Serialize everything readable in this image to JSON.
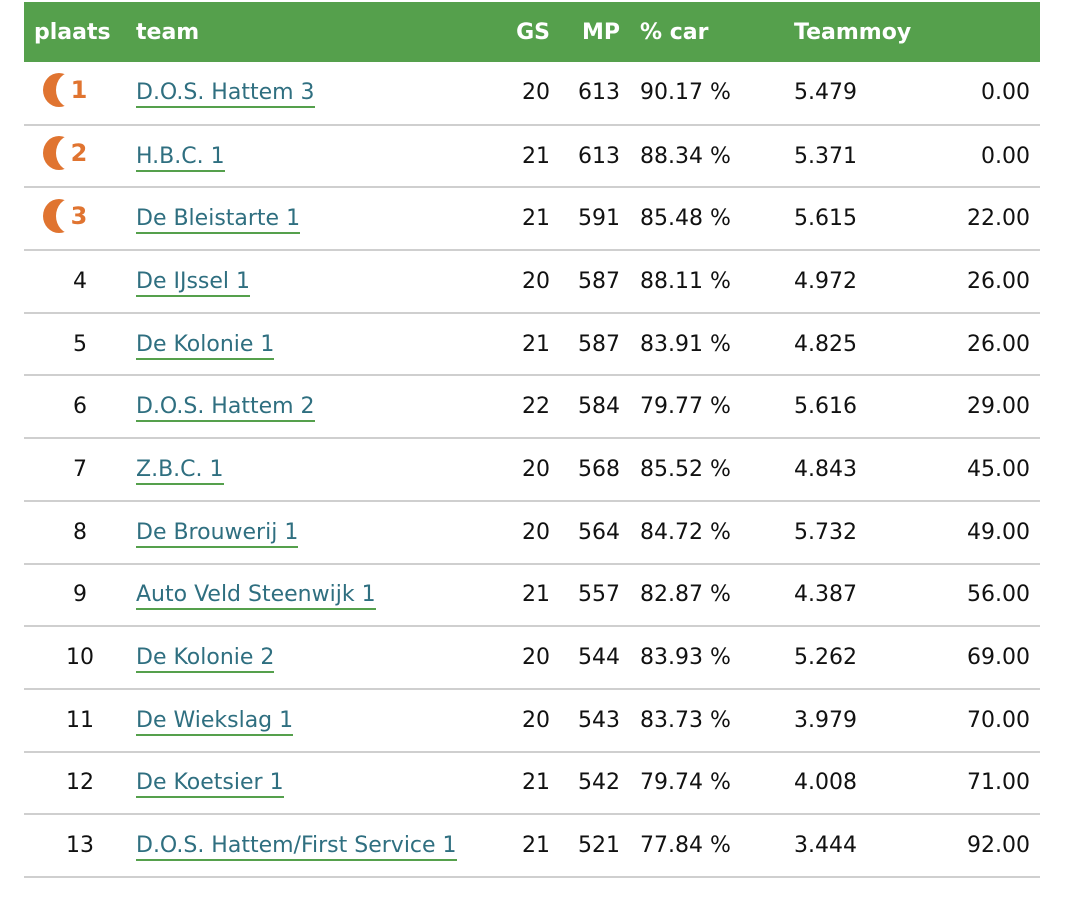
{
  "columns": [
    "plaats",
    "team",
    "GS",
    "MP",
    "% car",
    "Teammoy",
    ""
  ],
  "accent": "#55a04c",
  "medal_color": "#e07430",
  "rows": [
    {
      "plaats": "1",
      "team": "D.O.S. Hattem 3",
      "gs": "20",
      "mp": "613",
      "car": "90.17 %",
      "tm": "5.479",
      "last": "0.00",
      "medal": true
    },
    {
      "plaats": "2",
      "team": "H.B.C. 1",
      "gs": "21",
      "mp": "613",
      "car": "88.34 %",
      "tm": "5.371",
      "last": "0.00",
      "medal": true
    },
    {
      "plaats": "3",
      "team": "De Bleistarte 1",
      "gs": "21",
      "mp": "591",
      "car": "85.48 %",
      "tm": "5.615",
      "last": "22.00",
      "medal": true
    },
    {
      "plaats": "4",
      "team": "De IJssel 1",
      "gs": "20",
      "mp": "587",
      "car": "88.11 %",
      "tm": "4.972",
      "last": "26.00"
    },
    {
      "plaats": "5",
      "team": "De Kolonie 1",
      "gs": "21",
      "mp": "587",
      "car": "83.91 %",
      "tm": "4.825",
      "last": "26.00"
    },
    {
      "plaats": "6",
      "team": "D.O.S. Hattem 2",
      "gs": "22",
      "mp": "584",
      "car": "79.77 %",
      "tm": "5.616",
      "last": "29.00"
    },
    {
      "plaats": "7",
      "team": "Z.B.C. 1",
      "gs": "20",
      "mp": "568",
      "car": "85.52 %",
      "tm": "4.843",
      "last": "45.00"
    },
    {
      "plaats": "8",
      "team": "De Brouwerij 1",
      "gs": "20",
      "mp": "564",
      "car": "84.72 %",
      "tm": "5.732",
      "last": "49.00"
    },
    {
      "plaats": "9",
      "team": "Auto Veld Steenwijk 1",
      "gs": "21",
      "mp": "557",
      "car": "82.87 %",
      "tm": "4.387",
      "last": "56.00"
    },
    {
      "plaats": "10",
      "team": "De Kolonie 2",
      "gs": "20",
      "mp": "544",
      "car": "83.93 %",
      "tm": "5.262",
      "last": "69.00"
    },
    {
      "plaats": "11",
      "team": "De Wiekslag 1",
      "gs": "20",
      "mp": "543",
      "car": "83.73 %",
      "tm": "3.979",
      "last": "70.00"
    },
    {
      "plaats": "12",
      "team": "De Koetsier 1",
      "gs": "21",
      "mp": "542",
      "car": "79.74 %",
      "tm": "4.008",
      "last": "71.00"
    },
    {
      "plaats": "13",
      "team": "D.O.S. Hattem/First Service 1",
      "gs": "21",
      "mp": "521",
      "car": "77.84 %",
      "tm": "3.444",
      "last": "92.00"
    }
  ]
}
